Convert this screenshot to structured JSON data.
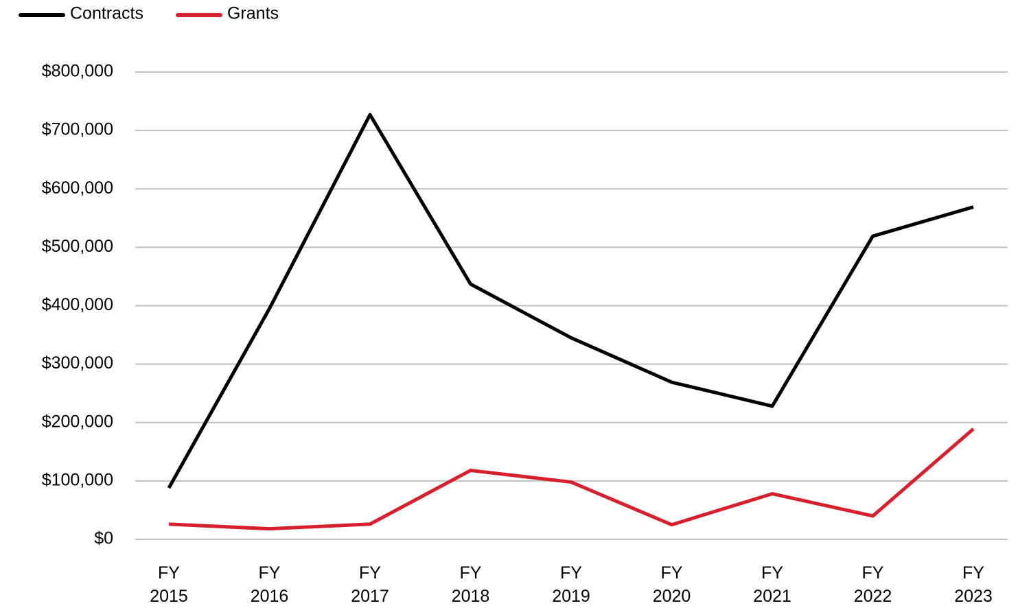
{
  "chart_data": {
    "type": "line",
    "categories": [
      "FY 2015",
      "FY 2016",
      "FY 2017",
      "FY 2018",
      "FY 2019",
      "FY 2020",
      "FY 2021",
      "FY 2022",
      "FY 2023"
    ],
    "series": [
      {
        "name": "Contracts",
        "color": "#000000",
        "values": [
          88000,
          395000,
          727000,
          437000,
          345000,
          269000,
          228000,
          519000,
          569000
        ]
      },
      {
        "name": "Grants",
        "color": "#d7202e",
        "values": [
          26000,
          18000,
          26000,
          118000,
          98000,
          25000,
          78000,
          40000,
          189000
        ]
      }
    ],
    "ylim": [
      0,
      800000
    ],
    "yticks": [
      {
        "value": 0,
        "label": "$0"
      },
      {
        "value": 100000,
        "label": "$100,000"
      },
      {
        "value": 200000,
        "label": "$200,000"
      },
      {
        "value": 300000,
        "label": "$300,000"
      },
      {
        "value": 400000,
        "label": "$400,000"
      },
      {
        "value": 500000,
        "label": "$500,000"
      },
      {
        "value": 600000,
        "label": "$600,000"
      },
      {
        "value": 700000,
        "label": "$700,000"
      },
      {
        "value": 800000,
        "label": "$800,000"
      }
    ],
    "grid": true,
    "legend": "top-left"
  }
}
